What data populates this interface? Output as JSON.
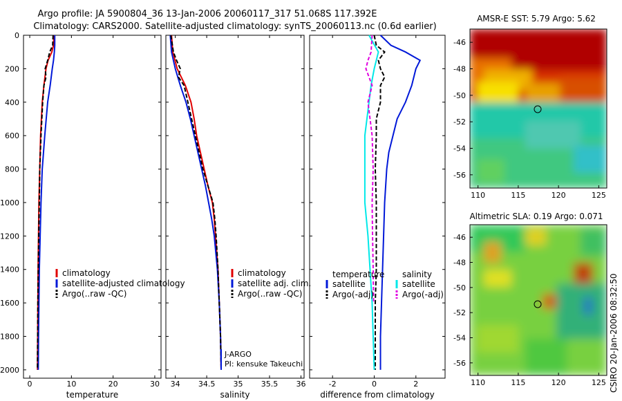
{
  "header": {
    "title_line1": "Argo profile: JA 5900804_36 13-Jan-2006 20060117_317 51.068S 117.392E",
    "title_line2": "Climatology: CARS2000. Satellite-adjusted climatology: synTS_20060113.nc (0.6d earlier)"
  },
  "watermark": "CSIRO 20-Jan-2006 08:32:50",
  "colors": {
    "climatology": "#e00000",
    "satellite": "#0018d8",
    "argo": "#000000",
    "sat_temp_diff": "#00e8e8",
    "argo_temp_diff": "#e000e0"
  },
  "chart_data": [
    {
      "type": "line",
      "xlabel": "temperature",
      "ylim": [
        2050,
        0
      ],
      "xlim": [
        -1.5,
        31.5
      ],
      "yticks": [
        "0",
        "200",
        "400",
        "600",
        "800",
        "1000",
        "1200",
        "1400",
        "1600",
        "1800",
        "2000"
      ],
      "xticks": [
        "0",
        "10",
        "20",
        "30"
      ],
      "legend": [
        "climatology",
        "satellite-adjusted climatology",
        "Argo(..raw -QC)"
      ],
      "series": [
        {
          "name": "climatology",
          "depth": [
            0,
            60,
            100,
            150,
            200,
            300,
            400,
            600,
            800,
            1000,
            1200,
            1400,
            1600,
            1800,
            2000
          ],
          "values": [
            5.8,
            5.7,
            5.3,
            4.4,
            3.9,
            3.4,
            3.0,
            2.6,
            2.4,
            2.2,
            2.1,
            2.0,
            1.95,
            1.9,
            1.85
          ]
        },
        {
          "name": "satellite-adjusted climatology",
          "depth": [
            0,
            60,
            100,
            150,
            200,
            300,
            400,
            600,
            800,
            1000,
            1200,
            1400,
            1600,
            1800,
            2000
          ],
          "values": [
            6.0,
            6.0,
            5.9,
            5.7,
            5.4,
            4.9,
            4.3,
            3.6,
            3.0,
            2.7,
            2.5,
            2.3,
            2.2,
            2.1,
            2.05
          ]
        },
        {
          "name": "Argo(..raw -QC)",
          "depth": [
            0,
            60,
            100,
            150,
            200,
            250,
            300,
            400,
            600,
            800,
            1000,
            1200,
            1400,
            1600,
            1800,
            2000
          ],
          "values": [
            5.6,
            5.5,
            4.8,
            4.3,
            3.7,
            3.9,
            3.4,
            3.1,
            2.7,
            2.4,
            2.3,
            2.15,
            2.05,
            1.95,
            1.9,
            1.85
          ]
        }
      ]
    },
    {
      "type": "line",
      "xlabel": "salinity",
      "ylim": [
        2050,
        0
      ],
      "xlim": [
        33.85,
        36.05
      ],
      "xticks": [
        "34",
        "34.5",
        "35",
        "35.5",
        "36"
      ],
      "legend": [
        "climatology",
        "satellite adj. clim.",
        "Argo(..raw -QC)"
      ],
      "annotations": [
        "J-ARGO",
        "PI: kensuke Takeuchi"
      ],
      "series": [
        {
          "name": "climatology",
          "depth": [
            0,
            100,
            200,
            300,
            400,
            500,
            600,
            700,
            800,
            900,
            1000,
            1100,
            1200,
            1400,
            1600,
            1800,
            2000
          ],
          "values": [
            33.94,
            33.96,
            34.03,
            34.16,
            34.25,
            34.3,
            34.34,
            34.4,
            34.46,
            34.52,
            34.59,
            34.62,
            34.64,
            34.68,
            34.7,
            34.72,
            34.73
          ]
        },
        {
          "name": "satellite adj. clim.",
          "depth": [
            0,
            100,
            200,
            300,
            400,
            500,
            600,
            700,
            800,
            900,
            1000,
            1100,
            1200,
            1400,
            1600,
            1800,
            2000
          ],
          "values": [
            33.92,
            33.94,
            34.0,
            34.08,
            34.17,
            34.24,
            34.3,
            34.36,
            34.42,
            34.48,
            34.53,
            34.58,
            34.62,
            34.67,
            34.7,
            34.72,
            34.73
          ]
        },
        {
          "name": "Argo(..raw -QC)",
          "depth": [
            0,
            100,
            150,
            200,
            250,
            300,
            400,
            500,
            600,
            700,
            800,
            900,
            1000,
            1100,
            1200,
            1400,
            1600,
            1800,
            2000
          ],
          "values": [
            33.93,
            33.97,
            34.02,
            34.08,
            34.05,
            34.14,
            34.2,
            34.26,
            34.32,
            34.38,
            34.44,
            34.52,
            34.6,
            34.63,
            34.65,
            34.68,
            34.7,
            34.72,
            34.73
          ]
        }
      ]
    },
    {
      "type": "line",
      "xlabel": "difference from climatology",
      "ylim": [
        2050,
        0
      ],
      "xlim": [
        -3.1,
        3.4
      ],
      "xticks": [
        "-2",
        "0",
        "2"
      ],
      "legend_titles": [
        "temperature",
        "salinity"
      ],
      "legend": [
        "satellite",
        "Argo(-adj)",
        "satellite",
        "Argo(-adj)"
      ],
      "series": [
        {
          "name": "satellite",
          "quantity": "temperature",
          "depth": [
            0,
            60,
            100,
            150,
            200,
            300,
            400,
            500,
            600,
            700,
            800,
            1000,
            1200,
            1400,
            1600,
            1800,
            2000
          ],
          "values": [
            0.3,
            0.8,
            1.5,
            2.2,
            2.0,
            1.8,
            1.5,
            1.1,
            0.9,
            0.7,
            0.6,
            0.5,
            0.45,
            0.4,
            0.35,
            0.3,
            0.3
          ]
        },
        {
          "name": "Argo(-adj)",
          "quantity": "temperature",
          "depth": [
            0,
            60,
            100,
            150,
            200,
            250,
            300,
            400,
            500,
            600,
            800,
            1000,
            1200,
            1400,
            1600,
            1800,
            2000
          ],
          "values": [
            0.0,
            0.1,
            0.5,
            0.2,
            0.3,
            0.5,
            0.3,
            0.3,
            0.1,
            0.1,
            0.05,
            0.1,
            0.1,
            0.1,
            0.05,
            0.05,
            0.05
          ]
        },
        {
          "name": "satellite",
          "quantity": "salinity",
          "depth": [
            0,
            100,
            200,
            300,
            400,
            500,
            600,
            700,
            800,
            900,
            1000,
            1200,
            1400,
            1600,
            1800,
            2000
          ],
          "values": [
            -0.25,
            0.2,
            0.0,
            -0.15,
            -0.25,
            -0.35,
            -0.45,
            -0.45,
            -0.45,
            -0.45,
            -0.45,
            -0.3,
            -0.2,
            -0.1,
            -0.05,
            0.0
          ]
        },
        {
          "name": "Argo(-adj)",
          "quantity": "salinity",
          "depth": [
            0,
            100,
            150,
            200,
            300,
            400,
            500,
            600,
            800,
            1000,
            1200,
            1400,
            1600
          ],
          "values": [
            -0.1,
            -0.15,
            -0.3,
            -0.4,
            -0.1,
            -0.3,
            -0.2,
            -0.1,
            -0.05,
            -0.1,
            -0.08,
            -0.05,
            -0.03
          ]
        }
      ]
    },
    {
      "type": "heatmap",
      "title": "AMSR-E SST: 5.79 Argo: 5.62",
      "xlim": [
        109,
        126
      ],
      "ylim": [
        -57,
        -45
      ],
      "xticks": [
        "110",
        "115",
        "120",
        "125"
      ],
      "yticks": [
        "-46",
        "-48",
        "-50",
        "-52",
        "-54",
        "-56"
      ],
      "marker": {
        "lon": 117.392,
        "lat": -51.068
      }
    },
    {
      "type": "heatmap",
      "title": "Altimetric SLA: 0.19 Argo: 0.071",
      "xlim": [
        109,
        126
      ],
      "ylim": [
        -57,
        -45
      ],
      "xticks": [
        "110",
        "115",
        "120",
        "125"
      ],
      "yticks": [
        "-46",
        "-48",
        "-50",
        "-52",
        "-54",
        "-56"
      ],
      "marker": {
        "lon": 117.392,
        "lat": -51.068
      }
    }
  ]
}
